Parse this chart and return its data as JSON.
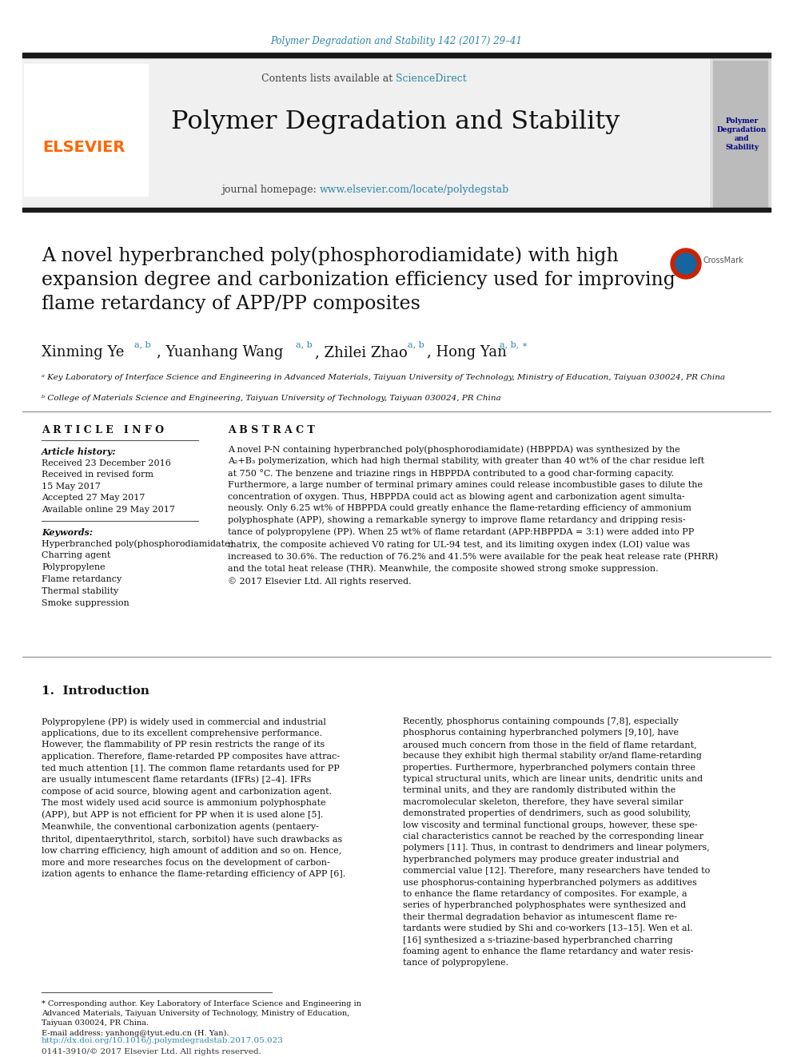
{
  "journal_ref": "Polymer Degradation and Stability 142 (2017) 29–41",
  "journal_ref_color": "#2E86AB",
  "journal_name": "Polymer Degradation and Stability",
  "header_bg": "#f0f0f0",
  "contents_text": "Contents lists available at ",
  "sciencedirect_text": "ScienceDirect",
  "sciencedirect_color": "#2E86AB",
  "journal_homepage_text": "journal homepage: ",
  "journal_url": "www.elsevier.com/locate/polydegstab",
  "journal_url_color": "#2E86AB",
  "elsevier_color": "#FF6600",
  "article_title": "A novel hyperbranched poly(phosphorodiamidate) with high\nexpansion degree and carbonization efficiency used for improving\nflame retardancy of APP/PP composites",
  "article_info_title": "A R T I C L E   I N F O",
  "article_history_label": "Article history:",
  "article_history": "Received 23 December 2016\nReceived in revised form\n15 May 2017\nAccepted 27 May 2017\nAvailable online 29 May 2017",
  "keywords_label": "Keywords:",
  "keywords": "Hyperbranched poly(phosphorodiamidate)\nCharring agent\nPolypropylene\nFlame retardancy\nThermal stability\nSmoke suppression",
  "abstract_title": "A B S T R A C T",
  "abstract_text": "A novel P-N containing hyperbranched poly(phosphorodiamidate) (HBPPDA) was synthesized by the\nA₂+B₃ polymerization, which had high thermal stability, with greater than 40 wt% of the char residue left\nat 750 °C. The benzene and triazine rings in HBPPDA contributed to a good char-forming capacity.\nFurthermore, a large number of terminal primary amines could release incombustible gases to dilute the\nconcentration of oxygen. Thus, HBPPDA could act as blowing agent and carbonization agent simulta-\nneously. Only 6.25 wt% of HBPPDA could greatly enhance the flame-retarding efficiency of ammonium\npolyphosphate (APP), showing a remarkable synergy to improve flame retardancy and dripping resis-\ntance of polypropylene (PP). When 25 wt% of flame retardant (APP:HBPPDA = 3:1) were added into PP\nmatrix, the composite achieved V0 rating for UL-94 test, and its limiting oxygen index (LOI) value was\nincreased to 30.6%. The reduction of 76.2% and 41.5% were available for the peak heat release rate (PHRR)\nand the total heat release (THR). Meanwhile, the composite showed strong smoke suppression.\n© 2017 Elsevier Ltd. All rights reserved.",
  "intro_title": "1.  Introduction",
  "intro_left": "Polypropylene (PP) is widely used in commercial and industrial\napplications, due to its excellent comprehensive performance.\nHowever, the flammability of PP resin restricts the range of its\napplication. Therefore, flame-retarded PP composites have attrac-\nted much attention [1]. The common flame retardants used for PP\nare usually intumescent flame retardants (IFRs) [2–4]. IFRs\ncompose of acid source, blowing agent and carbonization agent.\nThe most widely used acid source is ammonium polyphosphate\n(APP), but APP is not efficient for PP when it is used alone [5].\nMeanwhile, the conventional carbonization agents (pentaery-\nthritol, dipentaerythritol, starch, sorbitol) have such drawbacks as\nlow charring efficiency, high amount of addition and so on. Hence,\nmore and more researches focus on the development of carbon-\nization agents to enhance the flame-retarding efficiency of APP [6].",
  "intro_right": "Recently, phosphorus containing compounds [7,8], especially\nphosphorus containing hyperbranched polymers [9,10], have\naroused much concern from those in the field of flame retardant,\nbecause they exhibit high thermal stability or/and flame-retarding\nproperties. Furthermore, hyperbranched polymers contain three\ntypical structural units, which are linear units, dendritic units and\nterminal units, and they are randomly distributed within the\nmacromolecular skeleton, therefore, they have several similar\ndemonstrated properties of dendrimers, such as good solubility,\nlow viscosity and terminal functional groups, however, these spe-\ncial characteristics cannot be reached by the corresponding linear\npolymers [11]. Thus, in contrast to dendrimers and linear polymers,\nhyperbranched polymers may produce greater industrial and\ncommercial value [12]. Therefore, many researchers have tended to\nuse phosphorus-containing hyperbranched polymers as additives\nto enhance the flame retardancy of composites. For example, a\nseries of hyperbranched polyphosphates were synthesized and\ntheir thermal degradation behavior as intumescent flame re-\ntardants were studied by Shi and co-workers [13–15]. Wen et al.\n[16] synthesized a s-triazine-based hyperbranched charring\nfoaming agent to enhance the flame retardancy and water resis-\ntance of polypropylene.",
  "footnote_text": "* Corresponding author. Key Laboratory of Interface Science and Engineering in\nAdvanced Materials, Taiyuan University of Technology, Ministry of Education,\nTaiyuan 030024, PR China.\nE-mail address: yanhong@tyut.edu.cn (H. Yan).",
  "doi_text": "http://dx.doi.org/10.1016/j.polymdegradstab.2017.05.023",
  "doi_color": "#2E86AB",
  "copyright_text": "0141-3910/© 2017 Elsevier Ltd. All rights reserved.",
  "affiliation_a": "ᵃ Key Laboratory of Interface Science and Engineering in Advanced Materials, Taiyuan University of Technology, Ministry of Education, Taiyuan 030024, PR China",
  "affiliation_b": "ᵇ College of Materials Science and Engineering, Taiyuan University of Technology, Taiyuan 030024, PR China",
  "bg_color": "#ffffff",
  "text_color": "#000000",
  "black_bar_color": "#1a1a1a"
}
